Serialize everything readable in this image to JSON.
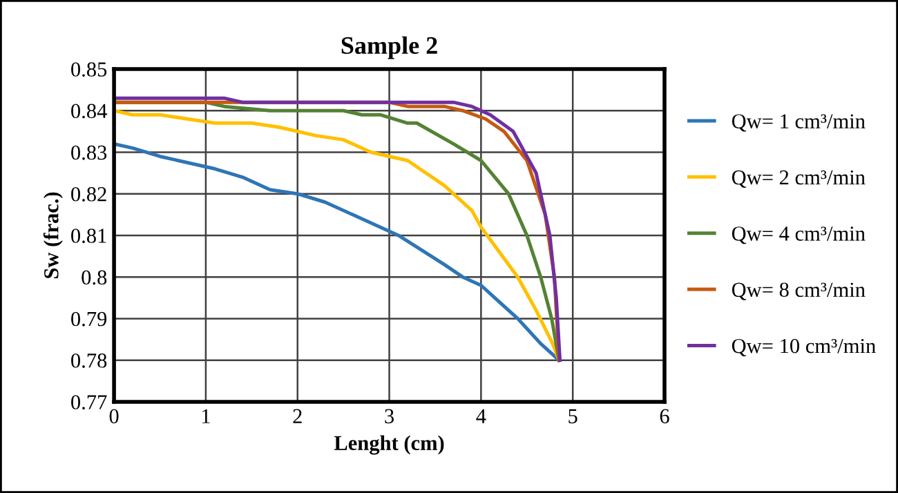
{
  "chart_data": {
    "type": "line",
    "title": "Sample 2",
    "xlabel": "Lenght (cm)",
    "ylabel": "Sw (frac.)",
    "xlim": [
      0,
      6
    ],
    "xticks": [
      0,
      1,
      2,
      3,
      4,
      5,
      6
    ],
    "ylim": [
      0.77,
      0.85
    ],
    "yticks": [
      0.77,
      0.78,
      0.79,
      0.8,
      0.81,
      0.82,
      0.83,
      0.84,
      0.85
    ],
    "grid": true,
    "legend": "right",
    "marker": "none",
    "line_style": "solid",
    "series": [
      {
        "name": "Qw= 1 cm³/min",
        "color": "#2e75b6",
        "x": [
          0,
          0.2,
          0.5,
          1.1,
          1.4,
          1.7,
          2.0,
          2.3,
          2.6,
          3.1,
          3.6,
          3.8,
          4.0,
          4.2,
          4.4,
          4.65,
          4.85
        ],
        "values": [
          0.832,
          0.831,
          0.829,
          0.826,
          0.824,
          0.821,
          0.82,
          0.818,
          0.815,
          0.81,
          0.803,
          0.8,
          0.798,
          0.794,
          0.79,
          0.784,
          0.78
        ]
      },
      {
        "name": "Qw= 2 cm³/min",
        "color": "#ffc000",
        "x": [
          0,
          0.2,
          0.5,
          0.8,
          1.1,
          1.5,
          1.8,
          2.2,
          2.5,
          2.8,
          3.2,
          3.6,
          3.9,
          4.0,
          4.2,
          4.4,
          4.6,
          4.78,
          4.85
        ],
        "values": [
          0.84,
          0.839,
          0.839,
          0.838,
          0.837,
          0.837,
          0.836,
          0.834,
          0.833,
          0.83,
          0.828,
          0.822,
          0.816,
          0.812,
          0.806,
          0.8,
          0.792,
          0.784,
          0.78
        ]
      },
      {
        "name": "Qw= 4 cm³/min",
        "color": "#548235",
        "x": [
          0,
          1.0,
          1.2,
          1.7,
          2.5,
          2.7,
          2.9,
          3.2,
          3.3,
          3.7,
          4.0,
          4.3,
          4.5,
          4.65,
          4.77,
          4.85
        ],
        "values": [
          0.842,
          0.842,
          0.841,
          0.84,
          0.84,
          0.839,
          0.839,
          0.837,
          0.837,
          0.832,
          0.828,
          0.82,
          0.81,
          0.8,
          0.79,
          0.78
        ]
      },
      {
        "name": "Qw= 8 cm³/min",
        "color": "#c55a11",
        "x": [
          0,
          3.0,
          3.2,
          3.6,
          3.8,
          4.05,
          4.25,
          4.5,
          4.7,
          4.8,
          4.85
        ],
        "values": [
          0.842,
          0.842,
          0.841,
          0.841,
          0.84,
          0.838,
          0.835,
          0.828,
          0.815,
          0.8,
          0.78
        ]
      },
      {
        "name": "Qw= 10 cm³/min",
        "color": "#7030a0",
        "x": [
          0,
          1.2,
          1.4,
          3.7,
          3.9,
          4.1,
          4.35,
          4.6,
          4.75,
          4.82,
          4.86
        ],
        "values": [
          0.843,
          0.843,
          0.842,
          0.842,
          0.841,
          0.839,
          0.835,
          0.825,
          0.81,
          0.795,
          0.78
        ]
      }
    ]
  }
}
